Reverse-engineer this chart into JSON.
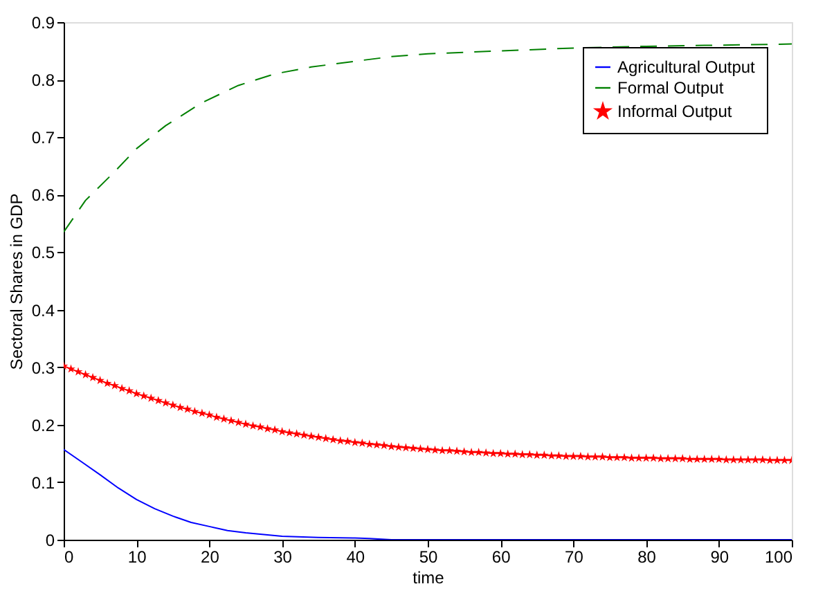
{
  "chart_data": {
    "type": "line",
    "xlabel": "time",
    "ylabel": "Sectoral Shares in GDP",
    "xlim": [
      0,
      100
    ],
    "xticks": [
      0,
      10,
      20,
      30,
      40,
      50,
      60,
      70,
      80,
      90,
      100
    ],
    "ylim": [
      0,
      0.9
    ],
    "yticks": [
      0,
      0.1,
      0.2,
      0.3,
      0.4,
      0.5,
      0.6,
      0.7,
      0.8,
      0.9
    ],
    "grid": false,
    "legend": "top right",
    "series": [
      {
        "name": "Agricultural Output",
        "color": "#0000ff",
        "line_style": "solid",
        "marker": "none",
        "x": [
          0,
          2.5,
          5,
          7.5,
          10,
          12.5,
          15,
          17.5,
          20,
          22.5,
          25,
          27.5,
          30,
          35,
          40,
          42,
          45,
          50,
          60,
          70,
          80,
          90,
          100
        ],
        "values": [
          0.157,
          0.135,
          0.113,
          0.09,
          0.07,
          0.054,
          0.041,
          0.03,
          0.023,
          0.016,
          0.012,
          0.009,
          0.006,
          0.004,
          0.003,
          0.002,
          0,
          0,
          0,
          0,
          0,
          0,
          0
        ]
      },
      {
        "name": "Formal Output",
        "color": "#008000",
        "line_style": "dashed",
        "marker": "none",
        "x": [
          0,
          3,
          7,
          10,
          14,
          19,
          24,
          29,
          34,
          40,
          45,
          50,
          60,
          70,
          80,
          90,
          100
        ],
        "values": [
          0.535,
          0.59,
          0.64,
          0.68,
          0.72,
          0.76,
          0.79,
          0.81,
          0.822,
          0.832,
          0.84,
          0.845,
          0.85,
          0.855,
          0.858,
          0.86,
          0.862
        ]
      },
      {
        "name": "Informal Output",
        "color": "#ff0000",
        "line_style": "solid",
        "marker": "star",
        "x": [
          0,
          1,
          2,
          3,
          4,
          5,
          6,
          7,
          8,
          9,
          10,
          11,
          12,
          13,
          14,
          15,
          16,
          17,
          18,
          19,
          20,
          21,
          22,
          23,
          24,
          25,
          26,
          27,
          28,
          29,
          30,
          31,
          32,
          33,
          34,
          35,
          36,
          37,
          38,
          39,
          40,
          41,
          42,
          43,
          44,
          45,
          46,
          47,
          48,
          49,
          50,
          51,
          52,
          53,
          54,
          55,
          56,
          57,
          58,
          59,
          60,
          61,
          62,
          63,
          64,
          65,
          66,
          67,
          68,
          69,
          70,
          71,
          72,
          73,
          74,
          75,
          76,
          77,
          78,
          79,
          80,
          81,
          82,
          83,
          84,
          85,
          86,
          87,
          88,
          89,
          90,
          91,
          92,
          93,
          94,
          95,
          96,
          97,
          98,
          99,
          100
        ],
        "values": [
          0.302,
          0.297,
          0.292,
          0.287,
          0.282,
          0.277,
          0.272,
          0.268,
          0.263,
          0.259,
          0.254,
          0.25,
          0.246,
          0.242,
          0.238,
          0.234,
          0.23,
          0.227,
          0.223,
          0.22,
          0.217,
          0.213,
          0.21,
          0.207,
          0.204,
          0.201,
          0.198,
          0.196,
          0.193,
          0.191,
          0.188,
          0.186,
          0.184,
          0.182,
          0.18,
          0.178,
          0.176,
          0.174,
          0.172,
          0.171,
          0.169,
          0.168,
          0.166,
          0.165,
          0.164,
          0.162,
          0.161,
          0.16,
          0.159,
          0.158,
          0.157,
          0.156,
          0.155,
          0.155,
          0.154,
          0.153,
          0.152,
          0.152,
          0.151,
          0.15,
          0.15,
          0.149,
          0.149,
          0.148,
          0.148,
          0.147,
          0.147,
          0.146,
          0.146,
          0.145,
          0.145,
          0.145,
          0.144,
          0.144,
          0.144,
          0.143,
          0.143,
          0.143,
          0.142,
          0.142,
          0.142,
          0.142,
          0.141,
          0.141,
          0.141,
          0.141,
          0.14,
          0.14,
          0.14,
          0.14,
          0.14,
          0.139,
          0.139,
          0.139,
          0.139,
          0.139,
          0.139,
          0.138,
          0.138,
          0.138,
          0.138
        ]
      }
    ]
  }
}
